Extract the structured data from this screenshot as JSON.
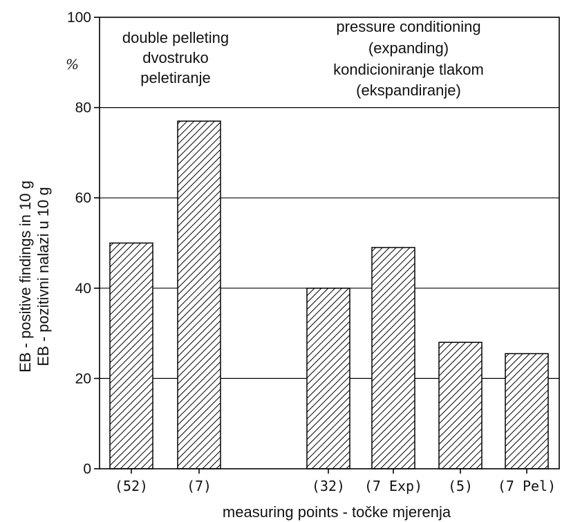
{
  "chart_data": {
    "type": "bar",
    "categories": [
      "(52)",
      "(7)",
      "(32)",
      "(7 Exp)",
      "(5)",
      "(7 Pel)"
    ],
    "values": [
      50,
      77,
      40,
      49,
      28,
      25.5
    ],
    "ylim": [
      0,
      100
    ],
    "yticks": [
      0,
      20,
      40,
      60,
      80,
      100
    ],
    "ytick_labels": [
      "0",
      "20",
      "40",
      "60",
      "80",
      "100"
    ],
    "y_unit": "%",
    "xlabel": "measuring points - točke mjerenja",
    "ylabel_line1": "EB - positive findings in 10 g",
    "ylabel_line2": "EB - pozitivni nalazi u 10 g",
    "grid": "horizontal",
    "fill_pattern": "diagonal-hatch",
    "annotations": {
      "left_group": [
        "double pelleting",
        "dvostruko",
        "peletiranje"
      ],
      "right_group": [
        "pressure conditioning",
        "(expanding)",
        "kondicioniranje tlakom",
        "(ekspandiranje)"
      ]
    }
  }
}
